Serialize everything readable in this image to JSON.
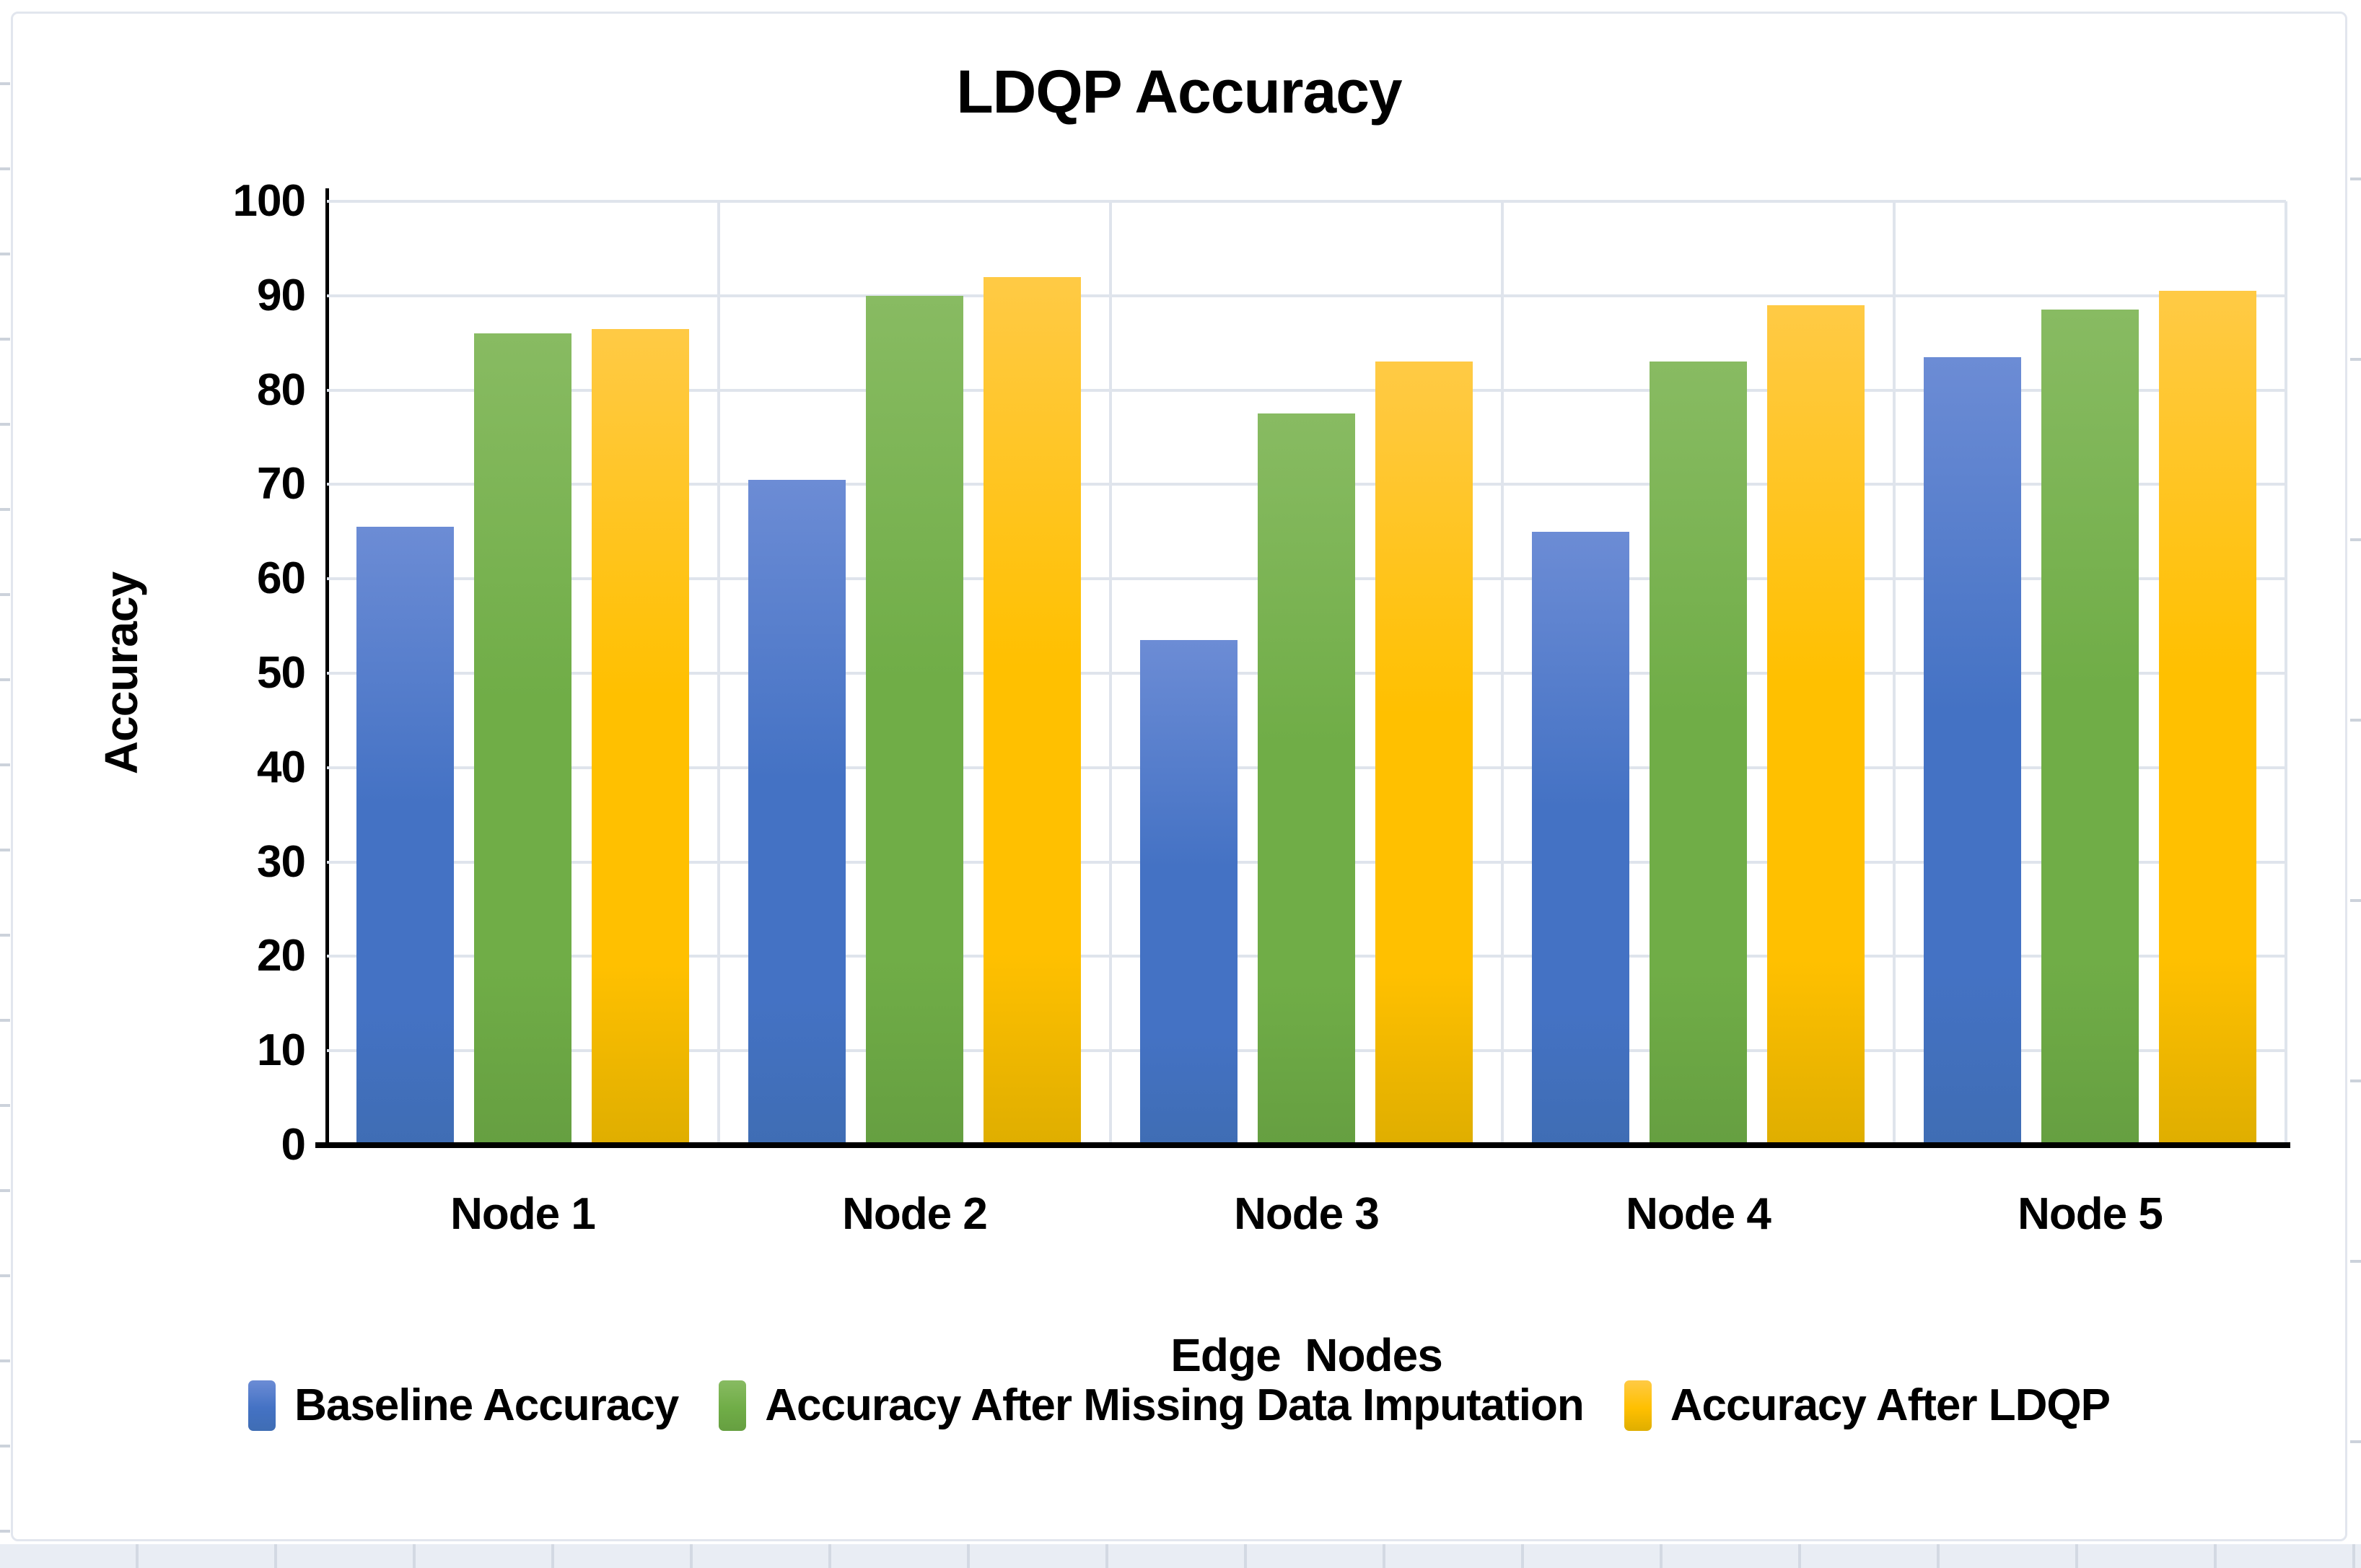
{
  "chart_data": {
    "type": "bar",
    "title": "LDQP Accuracy",
    "xlabel": "Edge  Nodes",
    "ylabel": "Accuracy",
    "categories": [
      "Node 1",
      "Node 2",
      "Node 3",
      "Node 4",
      "Node 5"
    ],
    "series": [
      {
        "name": "Baseline Accuracy",
        "color": "#4472C4",
        "color_light": "#6C8CD5",
        "color_dark": "#3F6DB4",
        "values": [
          65.5,
          70.5,
          53.5,
          65,
          83.5
        ]
      },
      {
        "name": "Accuracy After Missing Data Imputation",
        "color": "#70AD47",
        "color_light": "#88BB62",
        "color_dark": "#669F41",
        "values": [
          86,
          90,
          77.5,
          83,
          88.5
        ]
      },
      {
        "name": "Accuracy After LDQP",
        "color": "#FFC000",
        "color_light": "#FFCA45",
        "color_dark": "#DFAE00",
        "values": [
          86.5,
          92,
          83,
          89,
          90.5
        ]
      }
    ],
    "ylim": [
      0,
      100
    ],
    "ytick_step": 10,
    "grid": true,
    "legend_position": "bottom",
    "colors": {
      "gridline": "#DFE4EC",
      "axis": "#000000",
      "chart_border": "#E2E6EE",
      "page_background": "#FFFFFF"
    }
  }
}
